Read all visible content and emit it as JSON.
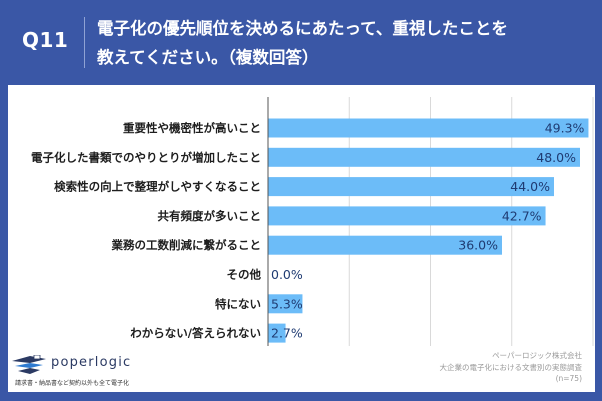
{
  "header": {
    "question_number": "Q11",
    "title_line1": "電子化の優先順位を決めるにあたって、重視したことを",
    "title_line2": "教えてください。（複数回答）"
  },
  "colors": {
    "background": "#3a57a6",
    "bar": "#6cbcf8",
    "value_text": "#1f3b72",
    "grid": "#d9d9d9"
  },
  "chart_data": {
    "type": "bar",
    "orientation": "horizontal",
    "title": "電子化の優先順位を決めるにあたって、重視したことを教えてください。（複数回答）",
    "categories": [
      "重要性や機密性が高いこと",
      "電子化した書類でのやりとりが増加したこと",
      "検索性の向上で整理がしやすくなること",
      "共有頻度が多いこと",
      "業務の工数削減に繋がること",
      "その他",
      "特にない",
      "わからない/答えられない"
    ],
    "values": [
      49.3,
      48.0,
      44.0,
      42.7,
      36.0,
      0.0,
      5.3,
      2.7
    ],
    "value_labels": [
      "49.3%",
      "48.0%",
      "44.0%",
      "42.7%",
      "36.0%",
      "0.0%",
      "5.3%",
      "2.7%"
    ],
    "unit": "%",
    "xlim": [
      0,
      50
    ],
    "grid_values": [
      12.5,
      25,
      37.5,
      50
    ],
    "grid": true,
    "xlabel": "",
    "ylabel": ""
  },
  "footer": {
    "logo_name": "poperlogic",
    "logo_tagline": "請求書・納品書など契約以外も全て電子化",
    "source_company": "ペーパーロジック株式会社",
    "source_survey": "大企業の電子化における文書別の実態調査",
    "sample_size": "(n=75)"
  }
}
